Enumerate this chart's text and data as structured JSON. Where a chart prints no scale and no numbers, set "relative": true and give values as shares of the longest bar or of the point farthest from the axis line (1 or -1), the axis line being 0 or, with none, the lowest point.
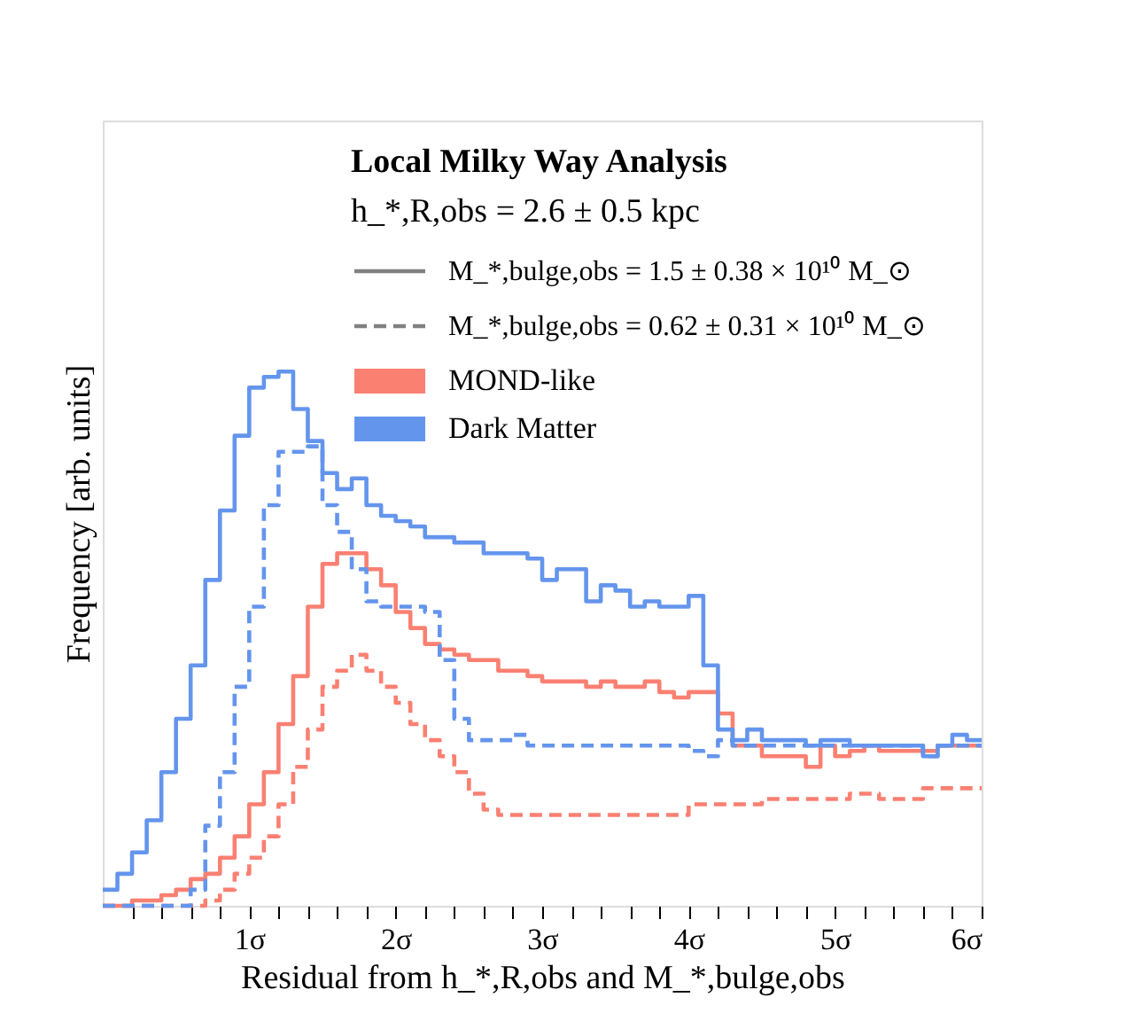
{
  "chart_data": {
    "type": "step",
    "relative": true,
    "xlabel": "Residual from h_*,R,obs and M_*,bulge,obs",
    "ylabel": "Frequency [arb. units]",
    "legend_title": "Local Milky Way Analysis",
    "legend": "top",
    "grid": false,
    "annotations": [
      "h_*,R,obs = 2.6 ± 0.5 kpc",
      "M_*,bulge,obs = 1.5 ± 0.38 × 10¹⁰ M_⊙",
      "M_*,bulge,obs = 0.62 ± 0.31 × 10¹⁰ M_⊙"
    ],
    "xlim": [
      0,
      6
    ],
    "xticks": [
      {
        "value": 0.2,
        "label": null
      },
      {
        "value": 0.4,
        "label": null
      },
      {
        "value": 0.6,
        "label": null
      },
      {
        "value": 0.8,
        "label": null
      },
      {
        "value": 1,
        "label": "1σ"
      },
      {
        "value": 1.2,
        "label": null
      },
      {
        "value": 1.4,
        "label": null
      },
      {
        "value": 1.6,
        "label": null
      },
      {
        "value": 1.8,
        "label": null
      },
      {
        "value": 2,
        "label": "2σ"
      },
      {
        "value": 2.2,
        "label": null
      },
      {
        "value": 2.4,
        "label": null
      },
      {
        "value": 2.6,
        "label": null
      },
      {
        "value": 2.8,
        "label": null
      },
      {
        "value": 3,
        "label": "3σ"
      },
      {
        "value": 3.2,
        "label": null
      },
      {
        "value": 3.4,
        "label": null
      },
      {
        "value": 3.6,
        "label": null
      },
      {
        "value": 3.8,
        "label": null
      },
      {
        "value": 4,
        "label": "4σ"
      },
      {
        "value": 4.2,
        "label": null
      },
      {
        "value": 4.4,
        "label": null
      },
      {
        "value": 4.6,
        "label": null
      },
      {
        "value": 4.8,
        "label": null
      },
      {
        "value": 5,
        "label": "5σ"
      },
      {
        "value": 5.2,
        "label": null
      },
      {
        "value": 5.4,
        "label": null
      },
      {
        "value": 5.6,
        "label": null
      },
      {
        "value": 5.8,
        "label": null
      },
      {
        "value": 6,
        "label": "6σ"
      }
    ],
    "x": [
      0,
      0.1,
      0.2,
      0.3,
      0.4,
      0.5,
      0.6,
      0.7,
      0.8,
      0.9,
      1.0,
      1.1,
      1.2,
      1.3,
      1.4,
      1.5,
      1.6,
      1.7,
      1.8,
      1.9,
      2.0,
      2.1,
      2.2,
      2.3,
      2.4,
      2.5,
      2.6,
      2.7,
      2.8,
      2.9,
      3.0,
      3.1,
      3.2,
      3.3,
      3.4,
      3.5,
      3.6,
      3.7,
      3.8,
      3.9,
      4.0,
      4.1,
      4.2,
      4.3,
      4.4,
      4.5,
      4.6,
      4.7,
      4.8,
      4.9,
      5.0,
      5.1,
      5.2,
      5.3,
      5.4,
      5.5,
      5.6,
      5.7,
      5.8,
      5.9,
      6.0
    ],
    "series": [
      {
        "name": "MOND-like",
        "color": "#fa8072",
        "line_style": "solid",
        "values": [
          0.0,
          0.0,
          0.01,
          0.01,
          0.02,
          0.03,
          0.05,
          0.06,
          0.09,
          0.13,
          0.19,
          0.25,
          0.34,
          0.43,
          0.56,
          0.64,
          0.66,
          0.66,
          0.63,
          0.6,
          0.55,
          0.52,
          0.49,
          0.48,
          0.47,
          0.46,
          0.46,
          0.44,
          0.44,
          0.43,
          0.42,
          0.42,
          0.42,
          0.41,
          0.42,
          0.41,
          0.41,
          0.42,
          0.4,
          0.39,
          0.4,
          0.4,
          0.36,
          0.3,
          0.3,
          0.28,
          0.28,
          0.28,
          0.26,
          0.3,
          0.28,
          0.29,
          0.3,
          0.29,
          0.29,
          0.29,
          0.29,
          0.3,
          0.3,
          0.3,
          0.3
        ]
      },
      {
        "name": "Dark Matter",
        "color": "#6495ed",
        "line_style": "solid",
        "values": [
          0.03,
          0.06,
          0.1,
          0.16,
          0.25,
          0.35,
          0.45,
          0.61,
          0.74,
          0.88,
          0.97,
          0.99,
          1.0,
          0.93,
          0.87,
          0.81,
          0.78,
          0.8,
          0.75,
          0.73,
          0.72,
          0.71,
          0.69,
          0.69,
          0.68,
          0.68,
          0.66,
          0.66,
          0.66,
          0.65,
          0.61,
          0.63,
          0.63,
          0.57,
          0.6,
          0.59,
          0.56,
          0.57,
          0.56,
          0.56,
          0.58,
          0.45,
          0.33,
          0.31,
          0.33,
          0.31,
          0.31,
          0.31,
          0.3,
          0.31,
          0.31,
          0.3,
          0.3,
          0.3,
          0.3,
          0.3,
          0.28,
          0.3,
          0.32,
          0.31,
          0.31
        ]
      },
      {
        "color": "#fa8072",
        "line_style": "dashed",
        "values": [
          0.0,
          0.0,
          0.0,
          0.0,
          0.0,
          0.0,
          0.0,
          0.01,
          0.03,
          0.06,
          0.09,
          0.13,
          0.19,
          0.26,
          0.33,
          0.41,
          0.44,
          0.47,
          0.44,
          0.41,
          0.38,
          0.34,
          0.31,
          0.28,
          0.25,
          0.21,
          0.18,
          0.17,
          0.17,
          0.17,
          0.17,
          0.17,
          0.17,
          0.17,
          0.17,
          0.17,
          0.17,
          0.17,
          0.17,
          0.17,
          0.19,
          0.19,
          0.19,
          0.19,
          0.19,
          0.2,
          0.2,
          0.2,
          0.2,
          0.2,
          0.2,
          0.21,
          0.21,
          0.2,
          0.2,
          0.2,
          0.22,
          0.22,
          0.22,
          0.22,
          0.22
        ]
      },
      {
        "color": "#6495ed",
        "line_style": "dashed",
        "values": [
          0.0,
          0.0,
          0.0,
          0.0,
          0.0,
          0.0,
          0.03,
          0.15,
          0.25,
          0.41,
          0.56,
          0.75,
          0.85,
          0.85,
          0.86,
          0.75,
          0.7,
          0.63,
          0.57,
          0.56,
          0.56,
          0.56,
          0.55,
          0.46,
          0.35,
          0.31,
          0.31,
          0.31,
          0.32,
          0.3,
          0.3,
          0.3,
          0.3,
          0.3,
          0.3,
          0.3,
          0.3,
          0.3,
          0.3,
          0.3,
          0.29,
          0.28,
          0.31,
          0.3,
          0.3,
          0.3,
          0.3,
          0.3,
          0.3,
          0.3,
          0.3,
          0.3,
          0.3,
          0.3,
          0.3,
          0.3,
          0.28,
          0.3,
          0.3,
          0.3,
          0.3
        ]
      }
    ]
  }
}
